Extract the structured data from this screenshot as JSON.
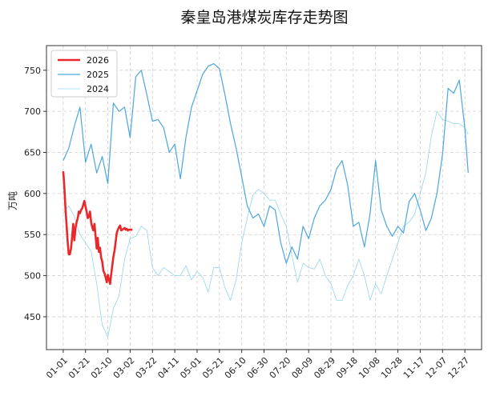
{
  "chart_data": {
    "type": "line",
    "title": "秦皇岛港煤炭库存走势图",
    "xlabel": "",
    "ylabel": "万吨",
    "ylim": [
      410,
      780
    ],
    "yticks": [
      450,
      500,
      550,
      600,
      650,
      700,
      750
    ],
    "x_tick_labels": [
      "01-01",
      "01-21",
      "02-10",
      "03-02",
      "03-22",
      "04-11",
      "05-01",
      "05-21",
      "06-10",
      "06-30",
      "07-20",
      "08-09",
      "08-29",
      "09-18",
      "10-08",
      "10-28",
      "11-17",
      "12-07",
      "12-27"
    ],
    "x_domain_days": [
      -15,
      375
    ],
    "grid": true,
    "legend_position": "top-left",
    "series": [
      {
        "name": "2026",
        "color": "#e8282b",
        "x": [
          0,
          1,
          2,
          3,
          4,
          5,
          6,
          7,
          8,
          9,
          10,
          11,
          12,
          13,
          14,
          15,
          16,
          17,
          18,
          19,
          20,
          21,
          22,
          23,
          24,
          25,
          26,
          27,
          28,
          29,
          30,
          31,
          32,
          33,
          34,
          35,
          36,
          37,
          38,
          39,
          40,
          41,
          42,
          43,
          44,
          45,
          46,
          47,
          48,
          49,
          50,
          51,
          52,
          53,
          54,
          55,
          56,
          57,
          58,
          59,
          60,
          61,
          62
        ],
        "values": [
          627,
          608,
          582,
          561,
          541,
          526,
          526,
          533,
          547,
          563,
          543,
          558,
          565,
          570,
          578,
          576,
          580,
          582,
          586,
          591,
          584,
          578,
          570,
          572,
          578,
          565,
          559,
          555,
          563,
          548,
          533,
          546,
          529,
          534,
          522,
          517,
          506,
          503,
          498,
          492,
          501,
          495,
          490,
          502,
          512,
          523,
          530,
          541,
          552,
          556,
          559,
          561,
          555,
          556,
          557,
          558,
          556,
          557,
          555,
          556,
          556,
          556,
          556
        ]
      },
      {
        "name": "2025",
        "color": "#4ba6de",
        "x": [
          0,
          5,
          10,
          15,
          20,
          25,
          30,
          35,
          40,
          45,
          50,
          55,
          60,
          65,
          70,
          75,
          80,
          85,
          90,
          95,
          100,
          105,
          110,
          115,
          120,
          125,
          130,
          135,
          140,
          145,
          150,
          155,
          160,
          165,
          170,
          175,
          180,
          185,
          190,
          195,
          200,
          205,
          210,
          215,
          220,
          225,
          230,
          235,
          240,
          245,
          250,
          255,
          260,
          265,
          270,
          275,
          280,
          285,
          290,
          295,
          300,
          305,
          310,
          315,
          320,
          325,
          330,
          335,
          340,
          345,
          350,
          355,
          360,
          363
        ],
        "values": [
          640,
          655,
          682,
          705,
          638,
          660,
          625,
          645,
          612,
          710,
          700,
          705,
          668,
          742,
          750,
          720,
          688,
          690,
          680,
          650,
          660,
          618,
          668,
          705,
          725,
          745,
          755,
          758,
          752,
          720,
          685,
          655,
          620,
          585,
          570,
          575,
          560,
          585,
          580,
          540,
          515,
          535,
          520,
          560,
          545,
          570,
          585,
          592,
          605,
          630,
          640,
          610,
          560,
          565,
          535,
          575,
          640,
          580,
          560,
          548,
          560,
          552,
          590,
          600,
          580,
          555,
          570,
          600,
          648,
          728,
          722,
          738,
          680,
          625
        ]
      },
      {
        "name": "2024",
        "color": "#8fd6ef",
        "x": [
          0,
          5,
          10,
          15,
          20,
          25,
          30,
          35,
          40,
          45,
          50,
          55,
          60,
          65,
          70,
          75,
          80,
          85,
          90,
          95,
          100,
          105,
          110,
          115,
          120,
          125,
          130,
          135,
          140,
          145,
          150,
          155,
          160,
          165,
          170,
          175,
          180,
          185,
          190,
          195,
          200,
          205,
          210,
          215,
          220,
          225,
          230,
          235,
          240,
          245,
          250,
          255,
          260,
          265,
          270,
          275,
          280,
          285,
          290,
          295,
          300,
          305,
          310,
          315,
          320,
          325,
          330,
          335,
          340,
          345,
          350,
          355,
          360,
          363
        ],
        "values": [
          576,
          585,
          572,
          550,
          540,
          530,
          490,
          440,
          425,
          460,
          475,
          520,
          545,
          548,
          560,
          555,
          510,
          500,
          510,
          505,
          500,
          500,
          512,
          495,
          505,
          498,
          480,
          510,
          510,
          485,
          470,
          495,
          540,
          570,
          598,
          605,
          600,
          592,
          592,
          575,
          560,
          525,
          492,
          515,
          510,
          508,
          520,
          500,
          490,
          470,
          470,
          488,
          500,
          520,
          500,
          470,
          490,
          478,
          500,
          520,
          540,
          560,
          565,
          575,
          600,
          625,
          670,
          700,
          690,
          688,
          685,
          685,
          680,
          672
        ]
      }
    ]
  }
}
